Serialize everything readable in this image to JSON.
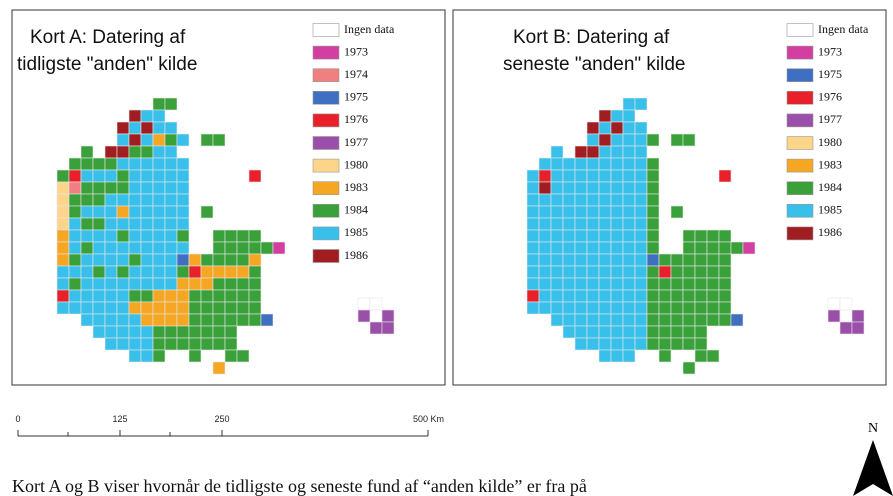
{
  "map_a": {
    "title_lines": [
      "Kort A: Datering af",
      "tidligste \"anden\" kilde"
    ],
    "legend": [
      {
        "label": "Ingen data",
        "color": "#ffffff"
      },
      {
        "label": "1973",
        "color": "#d23fa0"
      },
      {
        "label": "1974",
        "color": "#f08080"
      },
      {
        "label": "1975",
        "color": "#3f6fc0"
      },
      {
        "label": "1976",
        "color": "#e8202a"
      },
      {
        "label": "1977",
        "color": "#9a4fa8"
      },
      {
        "label": "1980",
        "color": "#fdd58a"
      },
      {
        "label": "1983",
        "color": "#f5a623"
      },
      {
        "label": "1984",
        "color": "#3aa03a"
      },
      {
        "label": "1985",
        "color": "#38c0ea"
      },
      {
        "label": "1986",
        "color": "#a01e22"
      }
    ]
  },
  "map_b": {
    "title_lines": [
      "Kort B: Datering af",
      "seneste \"anden\" kilde"
    ],
    "legend": [
      {
        "label": "Ingen data",
        "color": "#ffffff"
      },
      {
        "label": "1973",
        "color": "#d23fa0"
      },
      {
        "label": "1975",
        "color": "#3f6fc0"
      },
      {
        "label": "1976",
        "color": "#e8202a"
      },
      {
        "label": "1977",
        "color": "#9a4fa8"
      },
      {
        "label": "1980",
        "color": "#fdd58a"
      },
      {
        "label": "1983",
        "color": "#f5a623"
      },
      {
        "label": "1984",
        "color": "#3aa03a"
      },
      {
        "label": "1985",
        "color": "#38c0ea"
      },
      {
        "label": "1986",
        "color": "#a01e22"
      }
    ]
  },
  "scale": {
    "labels": [
      "0",
      "125",
      "250",
      "500 Km"
    ]
  },
  "north": "N",
  "caption": "Kort A og B viser hvornår de tidligste og seneste fund af “anden kilde” er fra på"
}
